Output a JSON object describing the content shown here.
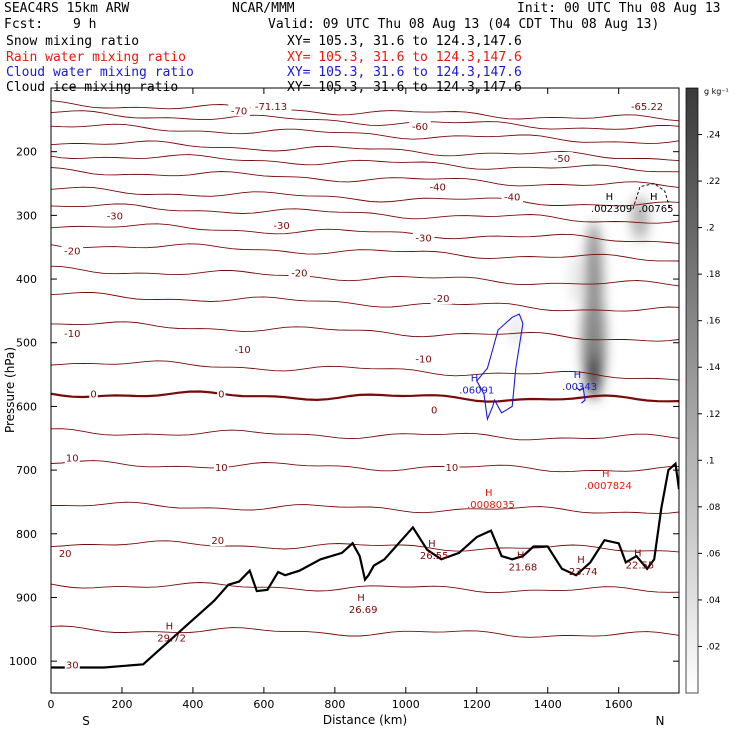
{
  "header": {
    "model": "SEAC4RS 15km ARW",
    "org": "NCAR/MMM",
    "init": "Init: 00 UTC Thu 08 Aug 13",
    "fcst_label": "Fcst:",
    "fcst_value": "9 h",
    "valid": "Valid: 09 UTC Thu 08 Aug 13 (04 CDT Thu 08 Aug 13)",
    "fields": [
      {
        "name": "Snow mixing ratio",
        "xy": "XY= 105.3, 31.6 to 124.3,147.6",
        "color": "#000000"
      },
      {
        "name": "Rain water mixing ratio",
        "xy": "XY= 105.3, 31.6 to 124.3,147.6",
        "color": "#e8190f"
      },
      {
        "name": "Cloud water mixing ratio",
        "xy": "XY= 105.3, 31.6 to 124.3,147.6",
        "color": "#1a1ad6"
      },
      {
        "name": "Cloud ice mixing ratio",
        "xy": "XY= 105.3, 31.6 to 124.3,147.6",
        "color": "#000000"
      }
    ]
  },
  "chart_data": {
    "type": "contour",
    "xlabel": "Distance (km)",
    "ylabel": "Pressure (hPa)",
    "xlim": [
      0,
      1770
    ],
    "ylim": [
      1050,
      100
    ],
    "xticks": [
      "0",
      "200",
      "400",
      "600",
      "800",
      "1000",
      "1200",
      "1400",
      "1600"
    ],
    "yticks": [
      "200",
      "300",
      "400",
      "500",
      "600",
      "700",
      "800",
      "900",
      "1000"
    ],
    "x_endpoints": {
      "left": "S",
      "right": "N"
    },
    "colorbar": {
      "unit": "g kg⁻¹",
      "ticks": [
        ".02",
        ".04",
        ".06",
        ".08",
        ".1",
        ".12",
        ".14",
        ".16",
        ".18",
        ".2",
        ".22",
        ".24"
      ],
      "range": [
        0,
        0.26
      ]
    },
    "temperature_contours": {
      "color": "#7a0a0a",
      "levels": [
        -70,
        -60,
        -50,
        -40,
        -30,
        -20,
        -10,
        0,
        10,
        20,
        30
      ],
      "labels": [
        {
          "text": "-71.13",
          "x": 620,
          "p": 128
        },
        {
          "text": "-65.22",
          "x": 1680,
          "p": 128
        },
        {
          "text": "-70",
          "x": 530,
          "p": 135
        },
        {
          "text": "-60",
          "x": 1040,
          "p": 160
        },
        {
          "text": "-50",
          "x": 1440,
          "p": 210
        },
        {
          "text": "-40",
          "x": 1090,
          "p": 255
        },
        {
          "text": "-40",
          "x": 1300,
          "p": 270
        },
        {
          "text": "-30",
          "x": 180,
          "p": 300
        },
        {
          "text": "-30",
          "x": 650,
          "p": 315
        },
        {
          "text": "-30",
          "x": 1050,
          "p": 335
        },
        {
          "text": "-20",
          "x": 60,
          "p": 355
        },
        {
          "text": "-20",
          "x": 700,
          "p": 390
        },
        {
          "text": "-20",
          "x": 1100,
          "p": 430
        },
        {
          "text": "-10",
          "x": 60,
          "p": 485
        },
        {
          "text": "-10",
          "x": 540,
          "p": 510
        },
        {
          "text": "-10",
          "x": 1050,
          "p": 525
        },
        {
          "text": "0",
          "x": 120,
          "p": 580
        },
        {
          "text": "0",
          "x": 480,
          "p": 580
        },
        {
          "text": "0",
          "x": 1080,
          "p": 605
        },
        {
          "text": "10",
          "x": 60,
          "p": 680
        },
        {
          "text": "10",
          "x": 480,
          "p": 695
        },
        {
          "text": "10",
          "x": 1130,
          "p": 695
        },
        {
          "text": "20",
          "x": 40,
          "p": 830
        },
        {
          "text": "20",
          "x": 470,
          "p": 810
        },
        {
          "text": "30",
          "x": 60,
          "p": 1005
        }
      ]
    },
    "highs": [
      {
        "text": ".002309",
        "x": 1580,
        "p": 285,
        "color": "#000000"
      },
      {
        "text": ".00765",
        "x": 1705,
        "p": 285,
        "color": "#000000"
      },
      {
        "text": ".06091",
        "x": 1200,
        "p": 570,
        "color": "#1a1ad6"
      },
      {
        "text": ".00343",
        "x": 1490,
        "p": 565,
        "color": "#1a1ad6"
      },
      {
        "text": ".0007824",
        "x": 1570,
        "p": 720,
        "color": "#e8190f"
      },
      {
        "text": ".0008035",
        "x": 1240,
        "p": 750,
        "color": "#e8190f"
      },
      {
        "text": "29.72",
        "x": 340,
        "p": 960,
        "color": "#7a0a0a"
      },
      {
        "text": "26.69",
        "x": 880,
        "p": 915,
        "color": "#7a0a0a"
      },
      {
        "text": "26.55",
        "x": 1080,
        "p": 830,
        "color": "#7a0a0a"
      },
      {
        "text": "21.68",
        "x": 1330,
        "p": 848,
        "color": "#7a0a0a"
      },
      {
        "text": "23.74",
        "x": 1500,
        "p": 855,
        "color": "#7a0a0a"
      },
      {
        "text": "22.55",
        "x": 1660,
        "p": 845,
        "color": "#7a0a0a"
      }
    ],
    "terrain": {
      "color": "#000000",
      "x": [
        0,
        150,
        260,
        300,
        340,
        380,
        420,
        460,
        500,
        530,
        560,
        580,
        610,
        640,
        660,
        700,
        760,
        820,
        850,
        870,
        885,
        895,
        910,
        940,
        980,
        1020,
        1060,
        1100,
        1150,
        1200,
        1240,
        1270,
        1300,
        1330,
        1360,
        1400,
        1440,
        1480,
        1520,
        1560,
        1600,
        1620,
        1650,
        1680,
        1700,
        1720,
        1740,
        1760,
        1770
      ],
      "p": [
        1010,
        1010,
        1005,
        985,
        965,
        945,
        925,
        905,
        880,
        875,
        858,
        890,
        888,
        860,
        865,
        858,
        840,
        830,
        815,
        835,
        872,
        865,
        850,
        840,
        815,
        790,
        825,
        840,
        830,
        805,
        795,
        835,
        840,
        835,
        820,
        820,
        855,
        865,
        845,
        810,
        815,
        845,
        835,
        855,
        840,
        760,
        700,
        690,
        730
      ]
    },
    "snow_shading": [
      {
        "x": 1530,
        "p": 490,
        "sx": 30,
        "sp": 100,
        "value": 0.24
      },
      {
        "x": 1530,
        "p": 420,
        "sx": 25,
        "sp": 110,
        "value": 0.15
      },
      {
        "x": 1660,
        "p": 305,
        "sx": 25,
        "sp": 35,
        "value": 0.1
      },
      {
        "x": 1310,
        "p": 480,
        "sx": 20,
        "sp": 25,
        "value": 0.03
      },
      {
        "x": 1480,
        "p": 400,
        "sx": 20,
        "sp": 40,
        "value": 0.03
      }
    ]
  }
}
